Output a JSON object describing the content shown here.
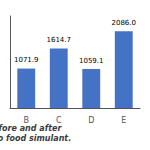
{
  "chart_data": {
    "type": "bar",
    "title": "PLA-BHT before and after migration into food simulant.",
    "categories": [
      "B",
      "C",
      "D",
      "E"
    ],
    "values": [
      1071.9,
      1614.7,
      1059.1,
      2086.0
    ],
    "value_labels": [
      "1071.9",
      "1614.7",
      "1059.1",
      "2086.0"
    ],
    "data_labels": true,
    "color": "#4472C4",
    "ylim": [
      0,
      2500
    ],
    "grid": false,
    "tick_labels": "x"
  }
}
